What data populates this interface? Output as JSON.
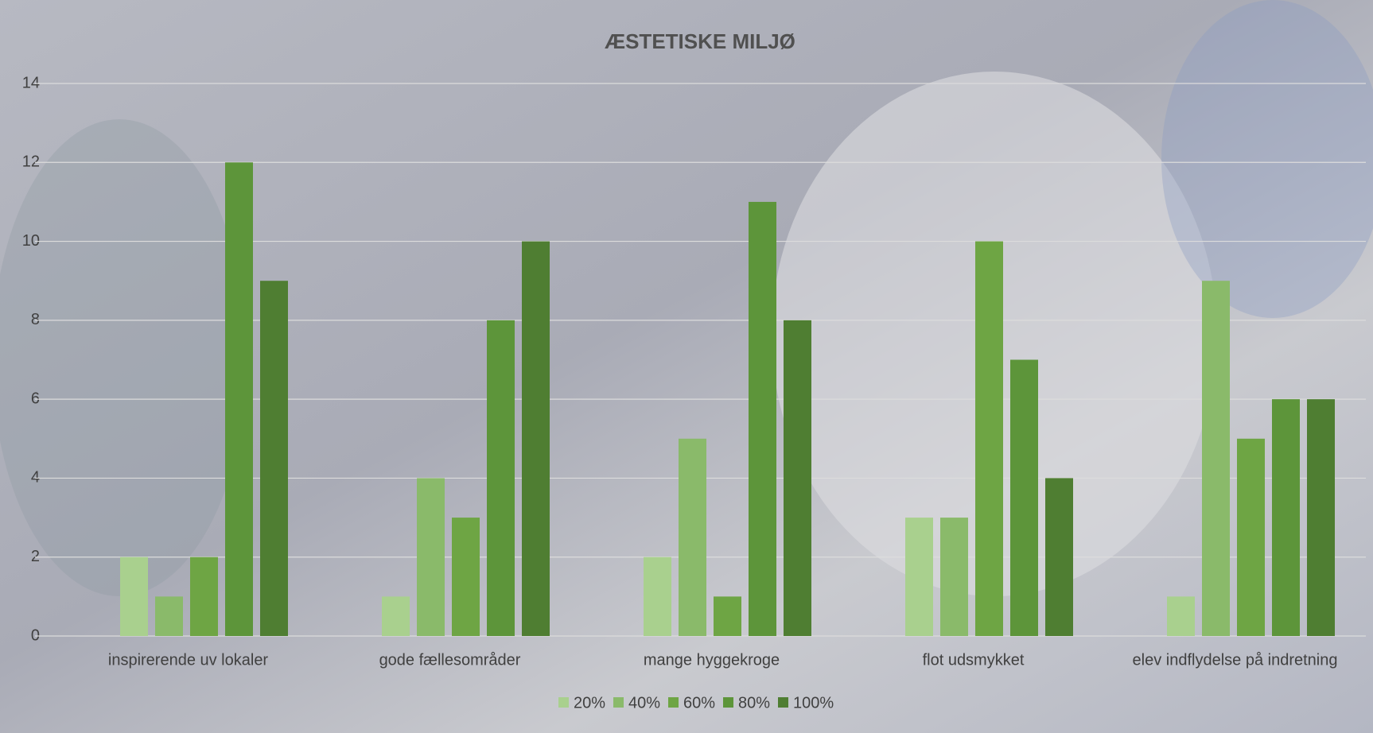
{
  "chart_data": {
    "type": "bar",
    "title": "ÆSTETISKE MILJØ",
    "categories": [
      "inspirerende uv lokaler",
      "gode fællesområder",
      "mange hyggekroge",
      "flot udsmykket",
      "elev indflydelse på indretning"
    ],
    "series": [
      {
        "name": "20%",
        "color": "#a9d08e",
        "values": [
          2,
          1,
          2,
          3,
          1
        ]
      },
      {
        "name": "40%",
        "color": "#8aba6a",
        "values": [
          1,
          4,
          5,
          3,
          9
        ]
      },
      {
        "name": "60%",
        "color": "#6ea544",
        "values": [
          2,
          3,
          1,
          10,
          5
        ]
      },
      {
        "name": "80%",
        "color": "#5d953a",
        "values": [
          12,
          8,
          11,
          7,
          6
        ]
      },
      {
        "name": "100%",
        "color": "#4f7e32",
        "values": [
          9,
          10,
          8,
          4,
          6
        ]
      }
    ],
    "ylim": [
      0,
      14
    ],
    "yticks": [
      0,
      2,
      4,
      6,
      8,
      10,
      12,
      14
    ],
    "grid": true,
    "legend": "bottom"
  }
}
